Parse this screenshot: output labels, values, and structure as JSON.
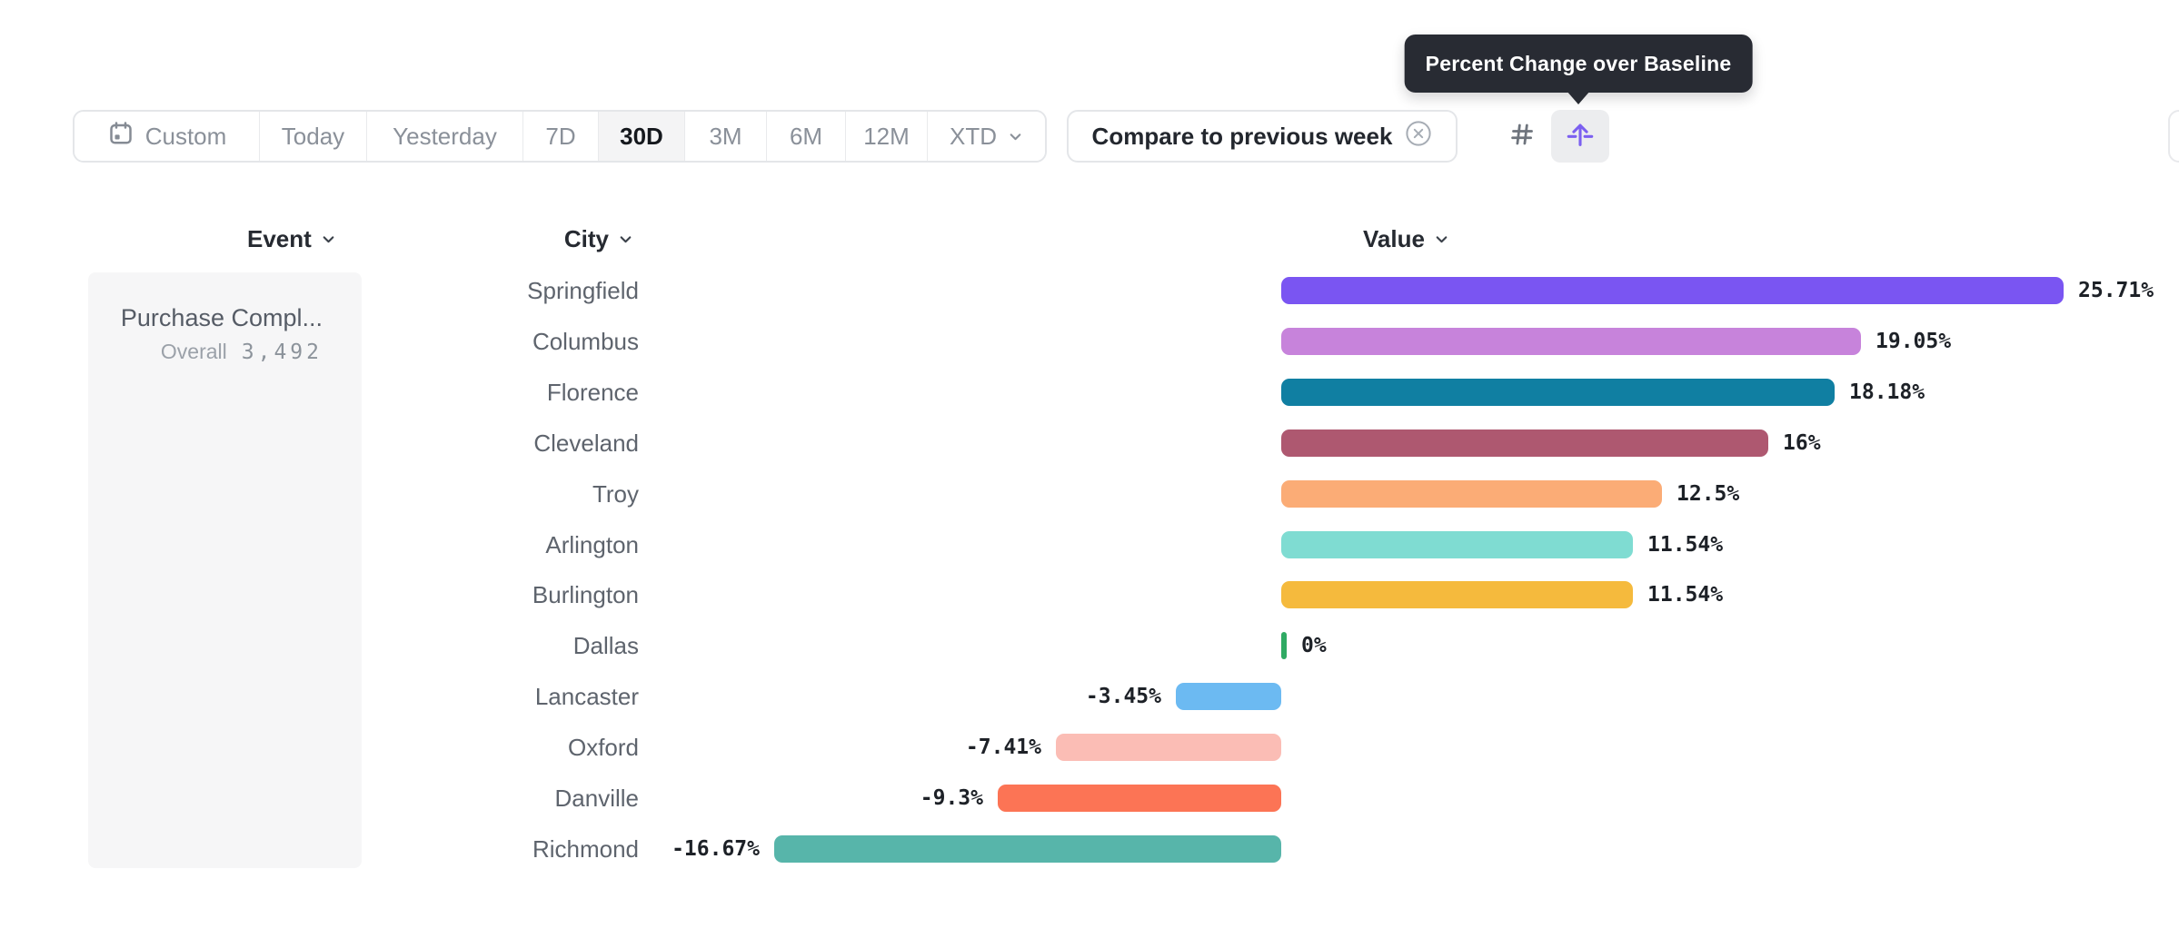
{
  "tooltip": {
    "text": "Percent Change over Baseline",
    "bg_color": "#282b33"
  },
  "toolbar": {
    "date_buttons": [
      {
        "label": "Custom",
        "icon": "calendar-icon",
        "selected": false
      },
      {
        "label": "Today",
        "selected": false
      },
      {
        "label": "Yesterday",
        "selected": false
      },
      {
        "label": "7D",
        "selected": false
      },
      {
        "label": "30D",
        "selected": true
      },
      {
        "label": "3M",
        "selected": false
      },
      {
        "label": "6M",
        "selected": false
      },
      {
        "label": "12M",
        "selected": false
      },
      {
        "label": "XTD",
        "icon": "chevron-down-icon",
        "selected": false
      }
    ],
    "compare": {
      "label": "Compare to previous week",
      "icon": "circle-x-icon"
    },
    "view_toggle": {
      "options": [
        {
          "name": "absolute-numbers",
          "icon": "hash-icon",
          "selected": false
        },
        {
          "name": "percent-change-over-baseline",
          "icon": "baseline-arrow-icon",
          "selected": true,
          "accent_color": "#7b5ff0"
        }
      ]
    }
  },
  "columns": {
    "event": "Event",
    "city": "City",
    "value": "Value"
  },
  "event_card": {
    "name": "Purchase Compl...",
    "overall_label": "Overall",
    "overall_value": "3,492"
  },
  "chart_data": {
    "type": "bar",
    "orientation": "horizontal",
    "title": "Percent Change over Baseline",
    "xlabel": "Value",
    "ylabel": "City",
    "unit": "%",
    "baseline": 0,
    "xlim": [
      -17,
      26
    ],
    "grid": false,
    "categories": [
      "Springfield",
      "Columbus",
      "Florence",
      "Cleveland",
      "Troy",
      "Arlington",
      "Burlington",
      "Dallas",
      "Lancaster",
      "Oxford",
      "Danville",
      "Richmond"
    ],
    "values": [
      25.71,
      19.05,
      18.18,
      16,
      12.5,
      11.54,
      11.54,
      0,
      -3.45,
      -7.41,
      -9.3,
      -16.67
    ],
    "labels": [
      "25.71%",
      "19.05%",
      "18.18%",
      "16%",
      "12.5%",
      "11.54%",
      "11.54%",
      "0%",
      "-3.45%",
      "-7.41%",
      "-9.3%",
      "-16.67%"
    ],
    "colors": [
      "#7a55f2",
      "#c783db",
      "#107fa2",
      "#ae5870",
      "#fbac76",
      "#7fdcd2",
      "#f5ba3d",
      "#2faa63",
      "#6cbaf2",
      "#fbbdb5",
      "#fc7455",
      "#57b5aa"
    ]
  }
}
